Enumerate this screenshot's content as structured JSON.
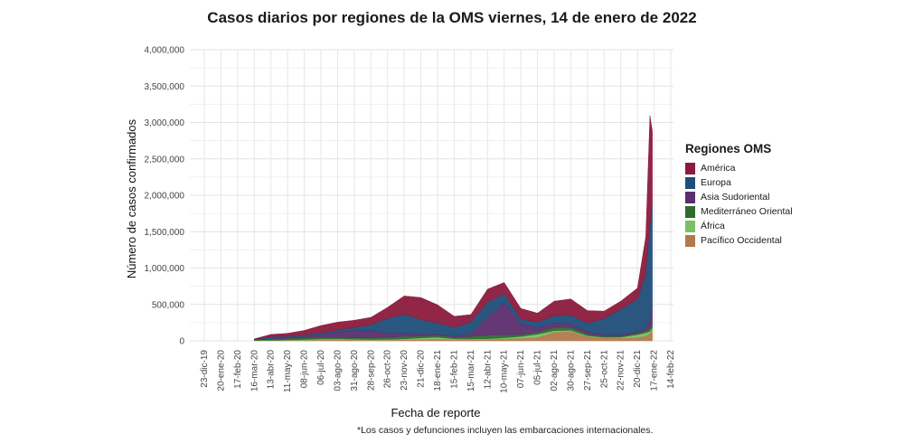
{
  "title": "Casos diarios por regiones de la OMS viernes, 14 de enero de 2022",
  "footnote": "*Los casos y defunciones incluyen las embarcaciones internacionales.",
  "legend": {
    "title": "Regiones OMS",
    "items": [
      {
        "label": "América",
        "color": "#8b1a3d"
      },
      {
        "label": "Europa",
        "color": "#1f4e79"
      },
      {
        "label": "Asia Sudoriental",
        "color": "#5b2d6e"
      },
      {
        "label": "Mediterráneo Oriental",
        "color": "#2e6b2e"
      },
      {
        "label": "África",
        "color": "#7cbf6a"
      },
      {
        "label": "Pacífico Occidental",
        "color": "#b07a4a"
      }
    ]
  },
  "chart_data": {
    "type": "area",
    "title": "Casos diarios por regiones de la OMS viernes, 14 de enero de 2022",
    "xlabel": "Fecha de reporte",
    "ylabel": "Número de casos confirmados",
    "ylim": [
      0,
      4000000
    ],
    "yticks": [
      0,
      500000,
      1000000,
      1500000,
      2000000,
      2500000,
      3000000,
      3500000,
      4000000
    ],
    "ytick_labels": [
      "0",
      "500,000",
      "1,000,000",
      "1,500,000",
      "2,000,000",
      "2,500,000",
      "3,000,000",
      "3,500,000",
      "4,000,000"
    ],
    "xtick_labels": [
      "23-dic-19",
      "20-ene-20",
      "17-feb-20",
      "16-mar-20",
      "13-abr-20",
      "11-may-20",
      "08-jun-20",
      "06-jul-20",
      "03-ago-20",
      "31-ago-20",
      "28-sep-20",
      "26-oct-20",
      "23-nov-20",
      "21-dic-20",
      "18-ene-21",
      "15-feb-21",
      "15-mar-21",
      "12-abr-21",
      "10-may-21",
      "07-jun-21",
      "05-jul-21",
      "02-ago-21",
      "30-ago-21",
      "27-sep-21",
      "25-oct-21",
      "22-nov-21",
      "20-dic-21",
      "17-ene-22",
      "14-feb-22"
    ],
    "grid": true,
    "legend_position": "right",
    "x": [
      "16-mar-20",
      "13-abr-20",
      "11-may-20",
      "08-jun-20",
      "06-jul-20",
      "03-ago-20",
      "31-ago-20",
      "28-sep-20",
      "26-oct-20",
      "23-nov-20",
      "21-dic-20",
      "18-ene-21",
      "15-feb-21",
      "15-mar-21",
      "12-abr-21",
      "10-may-21",
      "07-jun-21",
      "05-jul-21",
      "02-ago-21",
      "30-ago-21",
      "27-sep-21",
      "25-oct-21",
      "22-nov-21",
      "20-dic-21",
      "03-ene-22",
      "10-ene-22",
      "14-ene-22"
    ],
    "series": [
      {
        "name": "Pacífico Occidental",
        "values": [
          5000,
          6000,
          8000,
          8000,
          10000,
          15000,
          12000,
          10000,
          10000,
          15000,
          20000,
          25000,
          15000,
          15000,
          20000,
          30000,
          35000,
          50000,
          120000,
          130000,
          60000,
          40000,
          40000,
          45000,
          70000,
          100000,
          150000
        ]
      },
      {
        "name": "África",
        "values": [
          1000,
          2000,
          5000,
          10000,
          15000,
          12000,
          10000,
          8000,
          10000,
          12000,
          20000,
          25000,
          12000,
          10000,
          10000,
          12000,
          25000,
          40000,
          20000,
          15000,
          10000,
          8000,
          10000,
          40000,
          40000,
          30000,
          25000
        ]
      },
      {
        "name": "Mediterráneo Oriental",
        "values": [
          5000,
          15000,
          20000,
          25000,
          25000,
          20000,
          20000,
          25000,
          30000,
          35000,
          25000,
          25000,
          25000,
          35000,
          50000,
          40000,
          25000,
          30000,
          45000,
          40000,
          25000,
          15000,
          15000,
          20000,
          30000,
          45000,
          60000
        ]
      },
      {
        "name": "Asia Sudoriental",
        "values": [
          1000,
          5000,
          10000,
          20000,
          40000,
          70000,
          100000,
          100000,
          60000,
          45000,
          30000,
          20000,
          15000,
          40000,
          250000,
          450000,
          150000,
          60000,
          60000,
          50000,
          30000,
          25000,
          20000,
          20000,
          40000,
          120000,
          250000
        ]
      },
      {
        "name": "Europa",
        "values": [
          10000,
          30000,
          20000,
          20000,
          20000,
          30000,
          40000,
          80000,
          200000,
          260000,
          200000,
          150000,
          120000,
          160000,
          200000,
          120000,
          60000,
          80000,
          100000,
          120000,
          120000,
          220000,
          350000,
          450000,
          750000,
          1300000,
          1400000
        ]
      },
      {
        "name": "América",
        "values": [
          5000,
          30000,
          40000,
          60000,
          100000,
          110000,
          100000,
          100000,
          150000,
          250000,
          300000,
          250000,
          150000,
          100000,
          180000,
          150000,
          150000,
          120000,
          200000,
          220000,
          170000,
          100000,
          110000,
          150000,
          500000,
          1500000,
          1000000
        ]
      }
    ]
  }
}
